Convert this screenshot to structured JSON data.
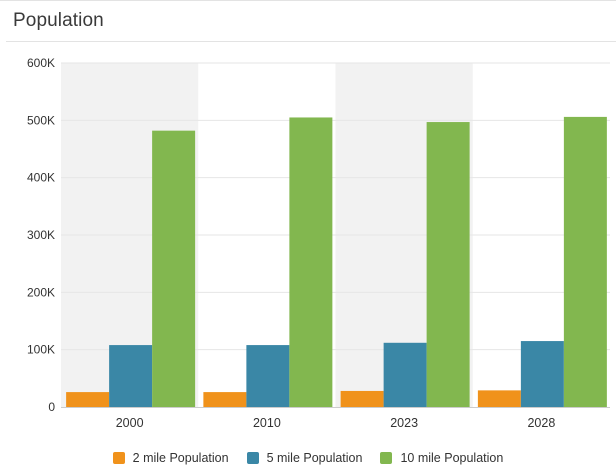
{
  "panel": {
    "title": "Population"
  },
  "chart_data": {
    "type": "bar",
    "title": "",
    "xlabel": "",
    "ylabel": "",
    "categories": [
      "2000",
      "2010",
      "2023",
      "2028"
    ],
    "ylim": [
      0,
      600000
    ],
    "yticks": [
      0,
      100000,
      200000,
      300000,
      400000,
      500000,
      600000
    ],
    "ytick_labels": [
      "0",
      "100K",
      "200K",
      "300K",
      "400K",
      "500K",
      "600K"
    ],
    "grid": true,
    "legend_position": "bottom",
    "series": [
      {
        "name": "2 mile Population",
        "color": "#f0921b",
        "values": [
          26000,
          26000,
          28000,
          29000
        ]
      },
      {
        "name": "5 mile Population",
        "color": "#3a87a6",
        "values": [
          108000,
          108000,
          112000,
          115000
        ]
      },
      {
        "name": "10 mile Population",
        "color": "#82b74f",
        "values": [
          482000,
          505000,
          497000,
          506000
        ]
      }
    ],
    "band_color": "#f2f2f2"
  }
}
